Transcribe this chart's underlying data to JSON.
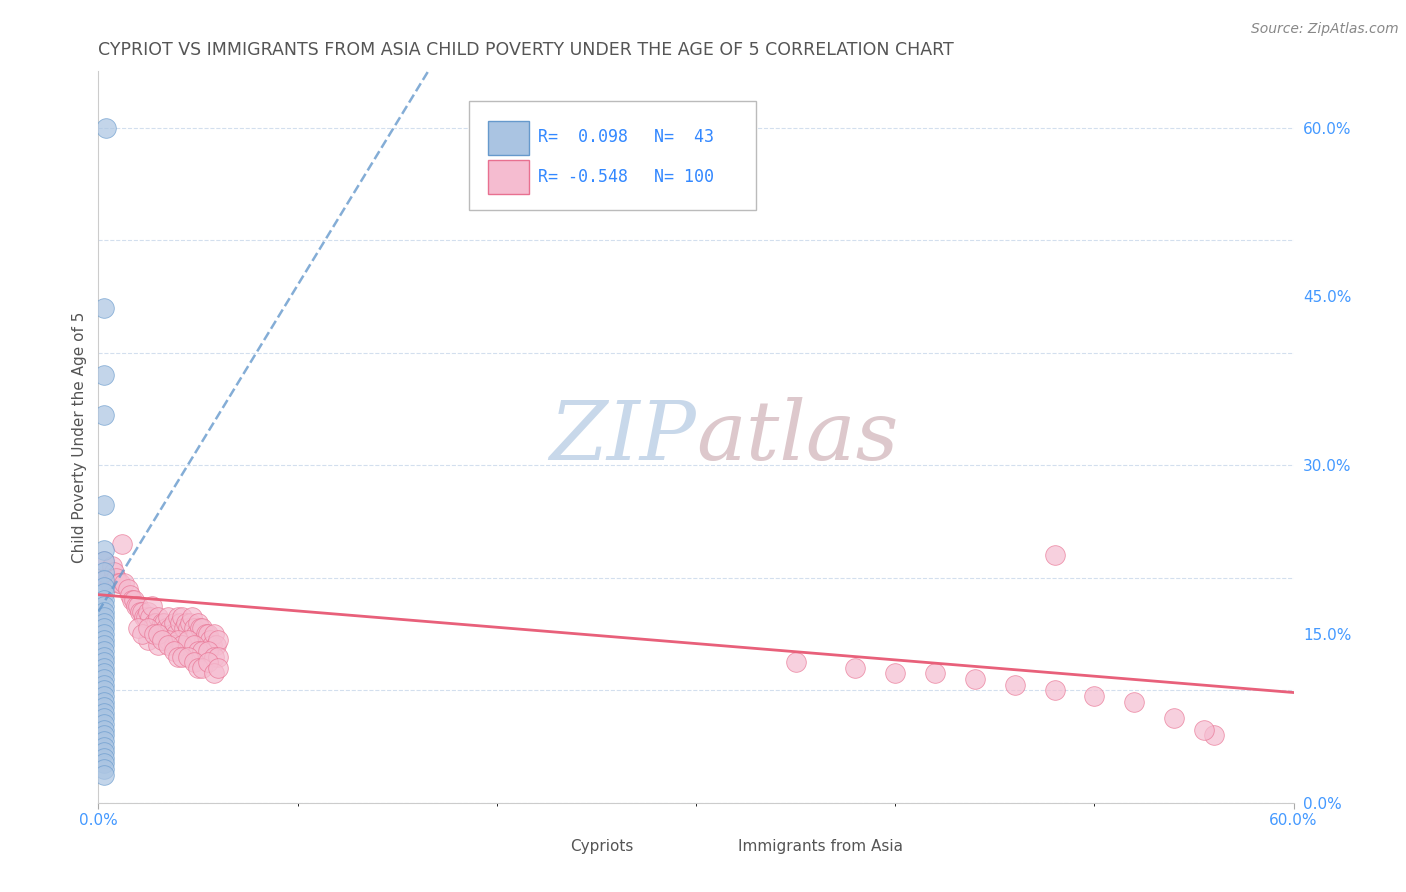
{
  "title": "CYPRIOT VS IMMIGRANTS FROM ASIA CHILD POVERTY UNDER THE AGE OF 5 CORRELATION CHART",
  "source": "Source: ZipAtlas.com",
  "ylabel": "Child Poverty Under the Age of 5",
  "xmin": 0.0,
  "xmax": 0.6,
  "ymin": 0.0,
  "ymax": 0.65,
  "right_yticks": [
    0.0,
    0.15,
    0.3,
    0.45,
    0.6
  ],
  "right_ytick_labels": [
    "0.0%",
    "15.0%",
    "30.0%",
    "45.0%",
    "60.0%"
  ],
  "cypriot_color": "#aac4e2",
  "cypriot_edge": "#6699cc",
  "immigrant_color": "#f5bcd0",
  "immigrant_edge": "#e87090",
  "trend_cypriot_color": "#6699cc",
  "trend_immigrant_color": "#e8607a",
  "watermark_zip_color": "#c8d8e8",
  "watermark_atlas_color": "#d8c8c8",
  "background_color": "#ffffff",
  "cypriot_points": [
    [
      0.004,
      0.6
    ],
    [
      0.003,
      0.44
    ],
    [
      0.003,
      0.38
    ],
    [
      0.003,
      0.345
    ],
    [
      0.003,
      0.265
    ],
    [
      0.003,
      0.225
    ],
    [
      0.003,
      0.215
    ],
    [
      0.003,
      0.205
    ],
    [
      0.003,
      0.198
    ],
    [
      0.003,
      0.192
    ],
    [
      0.003,
      0.186
    ],
    [
      0.003,
      0.18
    ],
    [
      0.003,
      0.175
    ],
    [
      0.003,
      0.17
    ],
    [
      0.003,
      0.165
    ],
    [
      0.003,
      0.16
    ],
    [
      0.003,
      0.155
    ],
    [
      0.003,
      0.15
    ],
    [
      0.003,
      0.145
    ],
    [
      0.003,
      0.14
    ],
    [
      0.003,
      0.135
    ],
    [
      0.003,
      0.13
    ],
    [
      0.003,
      0.125
    ],
    [
      0.003,
      0.12
    ],
    [
      0.003,
      0.115
    ],
    [
      0.003,
      0.11
    ],
    [
      0.003,
      0.105
    ],
    [
      0.003,
      0.1
    ],
    [
      0.003,
      0.095
    ],
    [
      0.003,
      0.09
    ],
    [
      0.003,
      0.085
    ],
    [
      0.003,
      0.08
    ],
    [
      0.003,
      0.075
    ],
    [
      0.003,
      0.07
    ],
    [
      0.003,
      0.065
    ],
    [
      0.003,
      0.06
    ],
    [
      0.003,
      0.055
    ],
    [
      0.003,
      0.05
    ],
    [
      0.003,
      0.045
    ],
    [
      0.003,
      0.04
    ],
    [
      0.003,
      0.035
    ],
    [
      0.003,
      0.03
    ],
    [
      0.003,
      0.025
    ]
  ],
  "immigrant_points": [
    [
      0.003,
      0.215
    ],
    [
      0.004,
      0.2
    ],
    [
      0.005,
      0.2
    ],
    [
      0.006,
      0.195
    ],
    [
      0.007,
      0.21
    ],
    [
      0.008,
      0.205
    ],
    [
      0.009,
      0.2
    ],
    [
      0.01,
      0.195
    ],
    [
      0.011,
      0.195
    ],
    [
      0.012,
      0.23
    ],
    [
      0.013,
      0.195
    ],
    [
      0.015,
      0.19
    ],
    [
      0.016,
      0.185
    ],
    [
      0.017,
      0.18
    ],
    [
      0.018,
      0.18
    ],
    [
      0.019,
      0.175
    ],
    [
      0.02,
      0.175
    ],
    [
      0.021,
      0.17
    ],
    [
      0.022,
      0.17
    ],
    [
      0.023,
      0.165
    ],
    [
      0.024,
      0.165
    ],
    [
      0.025,
      0.17
    ],
    [
      0.026,
      0.165
    ],
    [
      0.027,
      0.175
    ],
    [
      0.028,
      0.16
    ],
    [
      0.029,
      0.16
    ],
    [
      0.03,
      0.165
    ],
    [
      0.031,
      0.155
    ],
    [
      0.032,
      0.16
    ],
    [
      0.033,
      0.16
    ],
    [
      0.034,
      0.155
    ],
    [
      0.035,
      0.165
    ],
    [
      0.036,
      0.155
    ],
    [
      0.037,
      0.15
    ],
    [
      0.038,
      0.16
    ],
    [
      0.039,
      0.15
    ],
    [
      0.04,
      0.165
    ],
    [
      0.041,
      0.16
    ],
    [
      0.042,
      0.165
    ],
    [
      0.043,
      0.155
    ],
    [
      0.044,
      0.16
    ],
    [
      0.045,
      0.155
    ],
    [
      0.046,
      0.16
    ],
    [
      0.047,
      0.165
    ],
    [
      0.048,
      0.155
    ],
    [
      0.049,
      0.15
    ],
    [
      0.05,
      0.16
    ],
    [
      0.051,
      0.155
    ],
    [
      0.052,
      0.155
    ],
    [
      0.053,
      0.145
    ],
    [
      0.054,
      0.15
    ],
    [
      0.055,
      0.15
    ],
    [
      0.056,
      0.145
    ],
    [
      0.057,
      0.14
    ],
    [
      0.058,
      0.15
    ],
    [
      0.059,
      0.14
    ],
    [
      0.06,
      0.145
    ],
    [
      0.025,
      0.145
    ],
    [
      0.03,
      0.14
    ],
    [
      0.035,
      0.145
    ],
    [
      0.038,
      0.14
    ],
    [
      0.04,
      0.145
    ],
    [
      0.042,
      0.14
    ],
    [
      0.045,
      0.145
    ],
    [
      0.048,
      0.14
    ],
    [
      0.05,
      0.135
    ],
    [
      0.052,
      0.135
    ],
    [
      0.055,
      0.135
    ],
    [
      0.058,
      0.13
    ],
    [
      0.06,
      0.13
    ],
    [
      0.02,
      0.155
    ],
    [
      0.022,
      0.15
    ],
    [
      0.025,
      0.155
    ],
    [
      0.028,
      0.15
    ],
    [
      0.03,
      0.15
    ],
    [
      0.032,
      0.145
    ],
    [
      0.035,
      0.14
    ],
    [
      0.038,
      0.135
    ],
    [
      0.04,
      0.13
    ],
    [
      0.042,
      0.13
    ],
    [
      0.045,
      0.13
    ],
    [
      0.048,
      0.125
    ],
    [
      0.05,
      0.12
    ],
    [
      0.052,
      0.12
    ],
    [
      0.055,
      0.125
    ],
    [
      0.058,
      0.115
    ],
    [
      0.06,
      0.12
    ],
    [
      0.48,
      0.22
    ],
    [
      0.56,
      0.06
    ],
    [
      0.555,
      0.065
    ],
    [
      0.54,
      0.075
    ],
    [
      0.52,
      0.09
    ],
    [
      0.5,
      0.095
    ],
    [
      0.48,
      0.1
    ],
    [
      0.46,
      0.105
    ],
    [
      0.44,
      0.11
    ],
    [
      0.42,
      0.115
    ],
    [
      0.4,
      0.115
    ],
    [
      0.38,
      0.12
    ],
    [
      0.35,
      0.125
    ]
  ]
}
